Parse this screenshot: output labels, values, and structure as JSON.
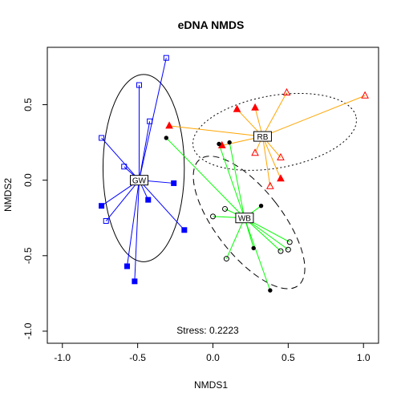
{
  "chart_data": {
    "type": "scatter",
    "title": "eDNA NMDS",
    "xlabel": "NMDS1",
    "ylabel": "NMDS2",
    "xlim": [
      -1.1,
      1.1
    ],
    "ylim": [
      -1.08,
      0.88
    ],
    "xticks": [
      -1.0,
      -0.5,
      0.0,
      0.5,
      1.0
    ],
    "xtick_labels": [
      "-1.0",
      "-0.5",
      "0.0",
      "0.5",
      "1.0"
    ],
    "yticks": [
      -1.0,
      -0.5,
      0.0,
      0.5
    ],
    "ytick_labels": [
      "-1.0",
      "-0.5",
      "0.0",
      "0.5"
    ],
    "grid": false,
    "annotation": "Stress: 0.2223",
    "groups": [
      {
        "name": "GW",
        "color": "#0000ff",
        "marker": "square",
        "centroid": [
          -0.49,
          0.0
        ],
        "ellipse": {
          "center": [
            -0.46,
            0.08
          ],
          "radii": [
            0.27,
            0.62
          ],
          "angle_deg": 0,
          "style": "solid",
          "color": "#000000"
        },
        "points": [
          {
            "x": -0.31,
            "y": 0.81,
            "filled": false
          },
          {
            "x": -0.49,
            "y": 0.63,
            "filled": false
          },
          {
            "x": -0.42,
            "y": 0.39,
            "filled": false
          },
          {
            "x": -0.74,
            "y": 0.28,
            "filled": false
          },
          {
            "x": -0.59,
            "y": 0.09,
            "filled": false
          },
          {
            "x": -0.71,
            "y": -0.27,
            "filled": false
          },
          {
            "x": -0.74,
            "y": -0.17,
            "filled": true
          },
          {
            "x": -0.43,
            "y": -0.13,
            "filled": true
          },
          {
            "x": -0.26,
            "y": -0.02,
            "filled": true
          },
          {
            "x": -0.19,
            "y": -0.33,
            "filled": true
          },
          {
            "x": -0.57,
            "y": -0.57,
            "filled": true
          },
          {
            "x": -0.52,
            "y": -0.67,
            "filled": true
          }
        ]
      },
      {
        "name": "RB",
        "color": "#ff0000",
        "line_color": "#ffa500",
        "marker": "triangle",
        "centroid": [
          0.33,
          0.29
        ],
        "ellipse": {
          "center": [
            0.41,
            0.32
          ],
          "radii": [
            0.55,
            0.24
          ],
          "angle_deg": -10,
          "style": "dotted",
          "color": "#000000"
        },
        "points": [
          {
            "x": -0.29,
            "y": 0.36,
            "filled": true
          },
          {
            "x": 0.06,
            "y": 0.23,
            "filled": true
          },
          {
            "x": 0.16,
            "y": 0.47,
            "filled": true
          },
          {
            "x": 0.28,
            "y": 0.48,
            "filled": true
          },
          {
            "x": 0.49,
            "y": 0.58,
            "filled": false
          },
          {
            "x": 1.01,
            "y": 0.56,
            "filled": false
          },
          {
            "x": 0.28,
            "y": 0.18,
            "filled": false
          },
          {
            "x": 0.45,
            "y": 0.15,
            "filled": false
          },
          {
            "x": 0.45,
            "y": 0.01,
            "filled": true
          },
          {
            "x": 0.38,
            "y": -0.04,
            "filled": false
          }
        ]
      },
      {
        "name": "WB",
        "color": "#000000",
        "line_color": "#00ff00",
        "marker": "circle",
        "centroid": [
          0.21,
          -0.25
        ],
        "ellipse": {
          "center": [
            0.24,
            -0.28
          ],
          "radii": [
            0.22,
            0.53
          ],
          "angle_deg": -38,
          "style": "dashed",
          "color": "#000000"
        },
        "points": [
          {
            "x": -0.31,
            "y": 0.28,
            "filled": true
          },
          {
            "x": 0.04,
            "y": 0.24,
            "filled": true
          },
          {
            "x": 0.11,
            "y": 0.25,
            "filled": true
          },
          {
            "x": 0.32,
            "y": -0.17,
            "filled": true
          },
          {
            "x": 0.27,
            "y": -0.45,
            "filled": true
          },
          {
            "x": 0.38,
            "y": -0.73,
            "filled": true
          },
          {
            "x": 0.0,
            "y": -0.24,
            "filled": false
          },
          {
            "x": 0.08,
            "y": -0.19,
            "filled": false
          },
          {
            "x": 0.09,
            "y": -0.52,
            "filled": false
          },
          {
            "x": 0.45,
            "y": -0.47,
            "filled": false
          },
          {
            "x": 0.51,
            "y": -0.41,
            "filled": false
          },
          {
            "x": 0.5,
            "y": -0.46,
            "filled": false
          }
        ]
      }
    ]
  }
}
